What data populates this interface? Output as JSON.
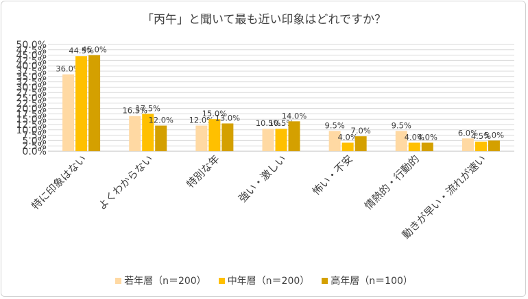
{
  "chart_data": {
    "type": "bar",
    "title": "「丙午」と聞いて最も近い印象はどれですか？",
    "categories": [
      "特に印象はない",
      "よくわからない",
      "特別な年",
      "強い・激しい",
      "怖い・不安",
      "情熱的・行動的",
      "動きが早い・流れが速い"
    ],
    "series": [
      {
        "name": "若年層（n＝200）",
        "color": "#FFD9A3",
        "values": [
          36.0,
          16.5,
          12.0,
          10.5,
          9.5,
          9.5,
          6.0
        ]
      },
      {
        "name": "中年層（n＝200）",
        "color": "#FFC000",
        "values": [
          44.5,
          17.5,
          15.0,
          10.5,
          4.0,
          4.0,
          4.5
        ]
      },
      {
        "name": "高年層（n＝100）",
        "color": "#D4A000",
        "values": [
          45.0,
          12.0,
          13.0,
          14.0,
          7.0,
          4.0,
          5.0
        ]
      }
    ],
    "ylim": [
      0,
      50
    ],
    "ytick_step": 2.5,
    "value_format": "percent-1dp",
    "grid": true,
    "legend_position": "bottom"
  }
}
